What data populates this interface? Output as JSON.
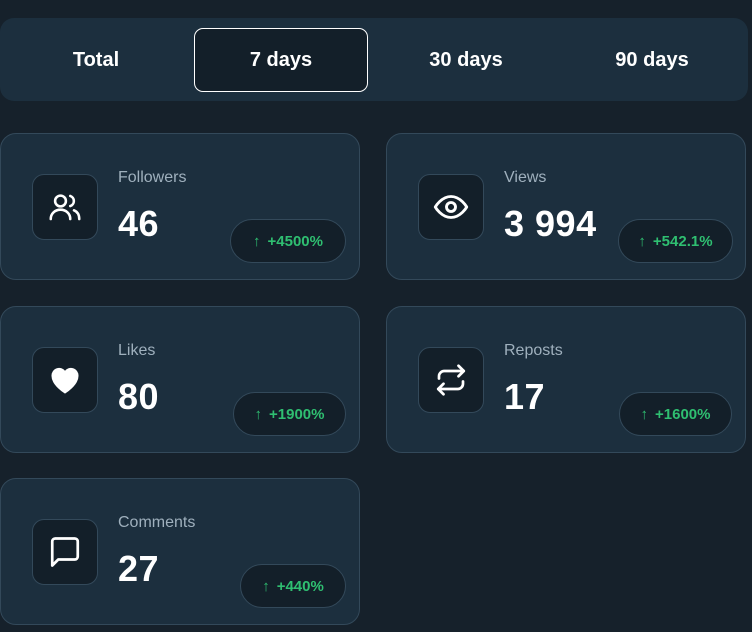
{
  "tabs": [
    {
      "label": "Total",
      "active": false
    },
    {
      "label": "7 days",
      "active": true
    },
    {
      "label": "30 days",
      "active": false
    },
    {
      "label": "90 days",
      "active": false
    }
  ],
  "stats": [
    {
      "label": "Followers",
      "value": "46",
      "change": "+4500%",
      "icon": "users-icon"
    },
    {
      "label": "Views",
      "value": "3 994",
      "change": "+542.1%",
      "icon": "eye-icon"
    },
    {
      "label": "Likes",
      "value": "80",
      "change": "+1900%",
      "icon": "heart-icon"
    },
    {
      "label": "Reposts",
      "value": "17",
      "change": "+1600%",
      "icon": "repost-icon"
    },
    {
      "label": "Comments",
      "value": "27",
      "change": "+440%",
      "icon": "comment-icon"
    }
  ],
  "arrow_glyph": "↑",
  "colors": {
    "positive": "#2fbf71",
    "card_bg": "#1c2f3e",
    "page_bg": "#16212b"
  }
}
